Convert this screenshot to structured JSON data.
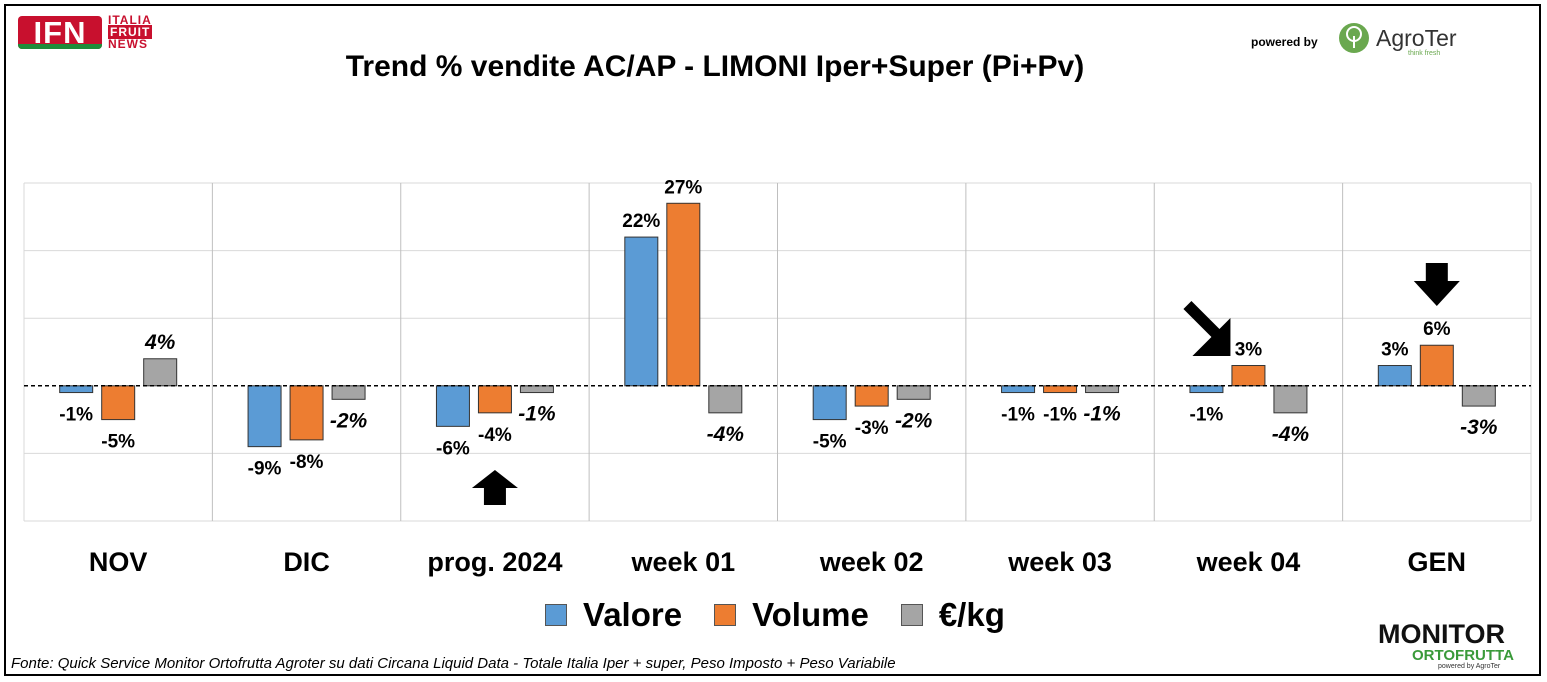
{
  "header": {
    "logo_ifn_main": "IFN",
    "logo_ifn_line1": "ITALIA",
    "logo_ifn_line2": "FRUIT",
    "logo_ifn_line3": "NEWS",
    "powered_by": "powered by",
    "agroter_name": "AgroTer",
    "agroter_tagline": "think fresh"
  },
  "chart_data": {
    "type": "bar",
    "title": "Trend % vendite AC/AP - LIMONI  Iper+Super (Pi+Pv)",
    "categories": [
      "NOV",
      "DIC",
      "prog. 2024",
      "week 01",
      "week 02",
      "week 03",
      "week 04",
      "GEN"
    ],
    "series": [
      {
        "name": "Valore",
        "color": "#5b9bd5",
        "values": [
          -1,
          -9,
          -6,
          22,
          -5,
          -1,
          -1,
          3
        ],
        "labels": [
          "-1%",
          "-9%",
          "-6%",
          "22%",
          "-5%",
          "-1%",
          "-1%",
          "3%"
        ],
        "label_style": "normal"
      },
      {
        "name": "Volume",
        "color": "#ed7d31",
        "values": [
          -5,
          -8,
          -4,
          27,
          -3,
          -1,
          3,
          6
        ],
        "labels": [
          "-5%",
          "-8%",
          "-4%",
          "27%",
          "-3%",
          "-1%",
          "3%",
          "6%"
        ],
        "label_style": "normal"
      },
      {
        "name": "€/kg",
        "color": "#a5a5a5",
        "values": [
          4,
          -2,
          -1,
          -4,
          -2,
          -1,
          -4,
          -3
        ],
        "labels": [
          "4%",
          "-2%",
          "-1%",
          "-4%",
          "-2%",
          "-1%",
          "-4%",
          "-3%"
        ],
        "label_style": "italic"
      }
    ],
    "ylim": [
      -20,
      30
    ],
    "grid": true,
    "zero_line": "dashed",
    "legend": "bottom",
    "annotations": [
      {
        "type": "arrow",
        "direction": "up",
        "category": "prog. 2024"
      },
      {
        "type": "arrow",
        "direction": "down-right",
        "category": "week 04"
      },
      {
        "type": "arrow",
        "direction": "down",
        "category": "GEN"
      }
    ]
  },
  "footer": {
    "source": "Fonte: Quick Service Monitor Ortofrutta Agroter su dati Circana Liquid Data - Totale Italia Iper + super, Peso Imposto + Peso Variabile",
    "monitor_line1": "MONITOR",
    "monitor_line2": "ORTOFRUTTA",
    "monitor_line3": "powered by AgroTer"
  }
}
